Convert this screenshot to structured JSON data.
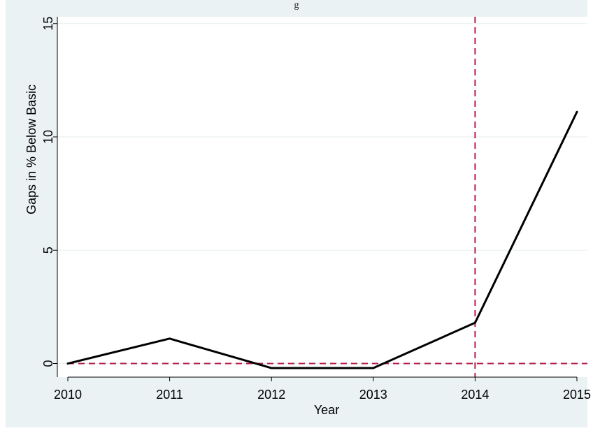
{
  "page": {
    "title_fragment": "g"
  },
  "colors": {
    "background": "#eaf2f3",
    "plot_area": "#ffffff",
    "series_line": "#000000",
    "reference_line": "#b5204a",
    "grid": "#e6eeee"
  },
  "chart_data": {
    "type": "line",
    "title": "",
    "xlabel": "Year",
    "ylabel": "Gaps in % Below Basic",
    "x": [
      2010,
      2011,
      2012,
      2013,
      2014,
      2015
    ],
    "series": [
      {
        "values": [
          0.0,
          1.1,
          -0.2,
          -0.2,
          1.8,
          11.1
        ]
      }
    ],
    "xlim": [
      2010,
      2015
    ],
    "ylim": [
      -0.6,
      15.3
    ],
    "xticks": [
      2010,
      2011,
      2012,
      2013,
      2014,
      2015
    ],
    "yticks": [
      0,
      5,
      10,
      15
    ],
    "xtick_labels": [
      "2010",
      "2011",
      "2012",
      "2013",
      "2014",
      "2015"
    ],
    "ytick_labels": [
      "0",
      "5",
      "10",
      "15"
    ],
    "reference_lines": [
      {
        "axis": "y",
        "value": 0,
        "style": "dashed"
      },
      {
        "axis": "x",
        "value": 2014,
        "style": "dashed"
      }
    ],
    "grid": "horizontal",
    "legend": "none"
  }
}
